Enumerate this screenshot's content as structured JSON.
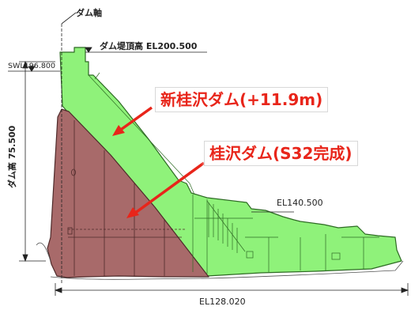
{
  "labels": {
    "dam_axis": "ダム軸",
    "crest_elevation": "ダム堤頂高 EL200.500",
    "water_level": "SWL196.800",
    "dam_height": "ダム高 75.500",
    "downstream_level": "EL140.500",
    "base_level": "EL128.020"
  },
  "callouts": {
    "new_dam": "新桂沢ダム(+11.9m)",
    "old_dam": "桂沢ダム(S32完成)"
  },
  "colors": {
    "new_dam_fill": "#8ff27a",
    "new_dam_edge": "#2e6b24",
    "old_dam_fill": "#a86a6a",
    "old_dam_edge": "#4e2a2a",
    "callout_text": "#e8251a",
    "arrow": "#e8251a",
    "line": "#222222"
  }
}
